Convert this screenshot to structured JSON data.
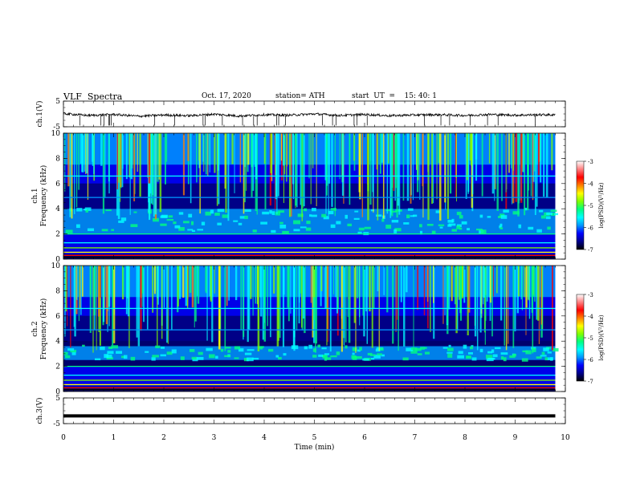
{
  "header": {
    "title": "VLF  Spectra",
    "date": "Oct. 17, 2020",
    "station": "station= ATH",
    "start": "start  UT  =    15: 40: 1"
  },
  "chart_data": [
    {
      "type": "line",
      "ylabel": "ch.1(V)",
      "ylim": [
        -5,
        5
      ],
      "yticks": [
        "5",
        "-5"
      ],
      "xlim": [
        0,
        10
      ],
      "x": [
        0,
        0.5,
        1,
        1.5,
        2,
        2.5,
        3,
        3.5,
        4,
        4.5,
        5,
        5.5,
        6,
        6.5,
        7,
        7.5,
        8,
        8.5,
        9,
        9.5,
        9.8
      ],
      "values": [
        0.1,
        -0.6,
        -0.2,
        -0.9,
        -0.4,
        -0.7,
        -0.1,
        -0.8,
        -0.3,
        -0.5,
        0.0,
        -0.6,
        -0.2,
        -0.7,
        -0.4,
        -0.3,
        -0.6,
        -0.2,
        -0.5,
        -0.3,
        -0.4
      ],
      "color": "#000000"
    },
    {
      "type": "heatmap",
      "ylabel_line1": "ch.1",
      "ylabel_line2": "Frequency  (kHz)",
      "ylim": [
        0,
        10
      ],
      "yticks": [
        "0",
        "2",
        "4",
        "6",
        "8",
        "10"
      ],
      "xlim": [
        0,
        10
      ],
      "data_end_min": 9.8,
      "hiss_band_khz": [
        2.0,
        4.0
      ],
      "colorbar": {
        "label": "log(PSD)(V²/Hz)",
        "range": [
          -7,
          -3
        ],
        "ticks": [
          "-3",
          "-4",
          "-5",
          "-6",
          "-7"
        ]
      }
    },
    {
      "type": "heatmap",
      "ylabel_line1": "ch.2",
      "ylabel_line2": "Frequency  (kHz)",
      "ylim": [
        0,
        10
      ],
      "yticks": [
        "0",
        "2",
        "4",
        "6",
        "8",
        "10"
      ],
      "xlim": [
        0,
        10
      ],
      "data_end_min": 9.8,
      "hiss_band_khz": [
        2.5,
        3.6
      ],
      "colorbar": {
        "label": "log(PSD)(V²/Hz)",
        "range": [
          -7,
          -3
        ],
        "ticks": [
          "-3",
          "-4",
          "-5",
          "-6",
          "-7"
        ]
      }
    },
    {
      "type": "line",
      "ylabel": "ch.3(V)",
      "ylim": [
        -5,
        5
      ],
      "yticks": [
        "5",
        "-5"
      ],
      "xlim": [
        0,
        10
      ],
      "x": [
        0,
        9.8
      ],
      "values": [
        -2,
        -2
      ],
      "color": "#000000"
    }
  ],
  "xaxis": {
    "label": "Time  (min)",
    "ticks": [
      "0",
      "1",
      "2",
      "3",
      "4",
      "5",
      "6",
      "7",
      "8",
      "9",
      "10"
    ]
  },
  "palette": [
    "#000000",
    "#00008c",
    "#0000ff",
    "#0096ff",
    "#00ffff",
    "#00ff80",
    "#80ff00",
    "#ffff00",
    "#ff8000",
    "#ff0000",
    "#ffffff"
  ]
}
